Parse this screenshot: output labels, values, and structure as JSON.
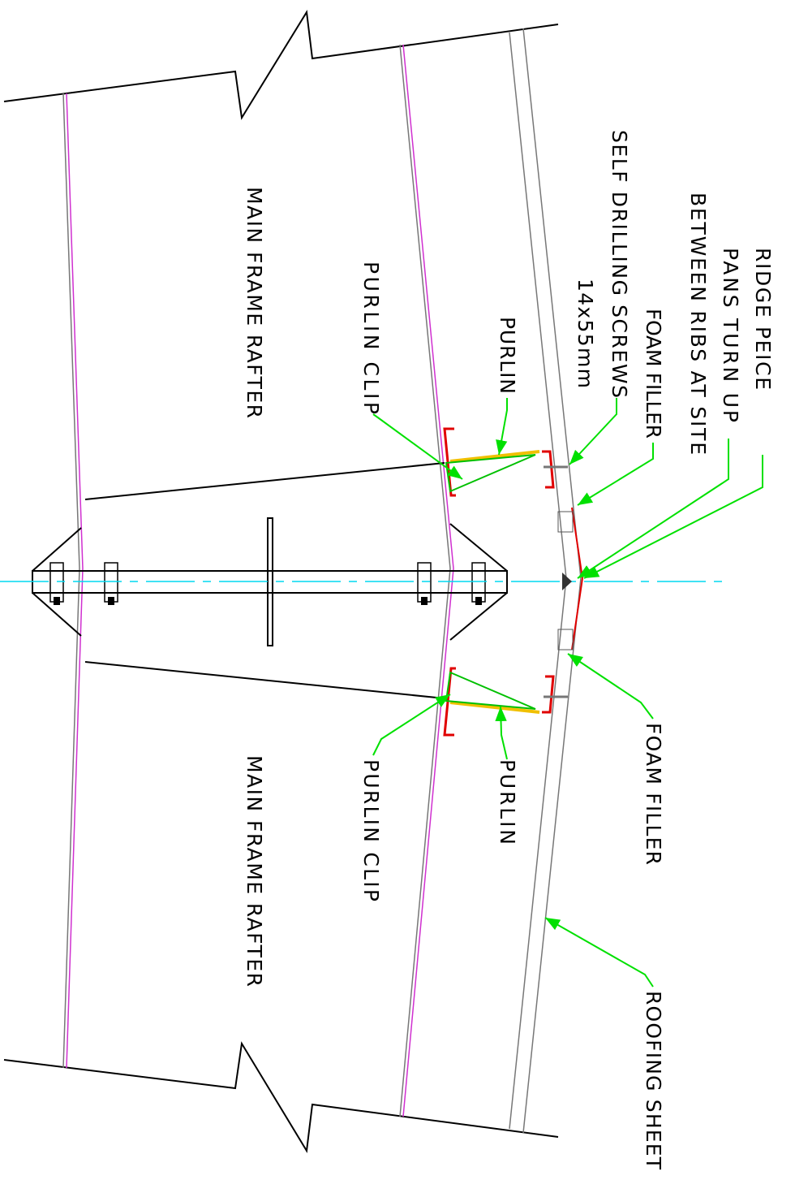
{
  "labels": {
    "ridge_piece": [
      "RIDGE PEICE",
      "PANS TURN UP",
      "BETWEEN RIBS AT SITE"
    ],
    "foam_filler_top": "FOAM FILLER",
    "self_drilling_screws": [
      "SELF DRILLING SCREWS",
      "14x55mm"
    ],
    "purlin_top": "PURLIN",
    "purlin_clip_top": "PURLIN CLIP",
    "main_frame_rafter_top": "MAIN FRAME RAFTER",
    "foam_filler_bottom": "FOAM FILLER",
    "roofing_sheet": "ROOFING SHEET",
    "purlin_bottom": "PURLIN",
    "purlin_clip_bottom": "PURLIN CLIP",
    "main_frame_rafter_bottom": "MAIN FRAME RAFTER"
  }
}
